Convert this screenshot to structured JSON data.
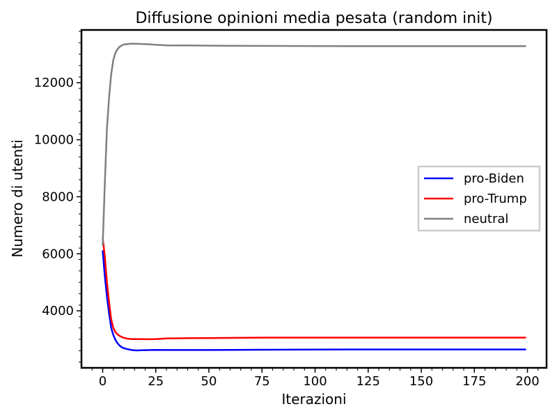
{
  "chart_data": {
    "type": "line",
    "title": "Diffusione opinioni media pesata (random init)",
    "xlabel": "Iterazioni",
    "ylabel": "Numero di utenti",
    "xlim": [
      -10,
      209
    ],
    "ylim": [
      2000,
      13850
    ],
    "xticks": [
      0,
      25,
      50,
      75,
      100,
      125,
      150,
      175,
      200
    ],
    "yticks": [
      4000,
      6000,
      8000,
      10000,
      12000
    ],
    "xtick_labels": [
      "0",
      "25",
      "50",
      "75",
      "100",
      "125",
      "150",
      "175",
      "200"
    ],
    "ytick_labels": [
      "4000",
      "6000",
      "8000",
      "10000",
      "12000"
    ],
    "grid": false,
    "legend_position": "center-right",
    "x": [
      0,
      1,
      2,
      3,
      4,
      5,
      6,
      7,
      8,
      9,
      10,
      12,
      14,
      16,
      18,
      20,
      25,
      30,
      40,
      50,
      60,
      75,
      100,
      125,
      150,
      175,
      199
    ],
    "series": [
      {
        "name": "pro-Biden",
        "color": "#0000ff",
        "values": [
          6100,
          5200,
          4500,
          3900,
          3400,
          3150,
          2980,
          2860,
          2780,
          2720,
          2690,
          2650,
          2620,
          2610,
          2615,
          2620,
          2630,
          2625,
          2625,
          2625,
          2630,
          2635,
          2640,
          2645,
          2645,
          2645,
          2645
        ]
      },
      {
        "name": "pro-Trump",
        "color": "#ff0000",
        "values": [
          6550,
          5900,
          5000,
          4300,
          3700,
          3400,
          3250,
          3170,
          3120,
          3080,
          3050,
          3020,
          3010,
          3010,
          3010,
          3005,
          3010,
          3030,
          3040,
          3045,
          3050,
          3060,
          3060,
          3060,
          3060,
          3060,
          3060
        ]
      },
      {
        "name": "neutral",
        "color": "#808080",
        "values": [
          6300,
          8500,
          10400,
          11500,
          12300,
          12800,
          13050,
          13180,
          13260,
          13310,
          13340,
          13360,
          13370,
          13365,
          13360,
          13355,
          13330,
          13310,
          13305,
          13300,
          13295,
          13290,
          13285,
          13280,
          13280,
          13280,
          13280
        ]
      }
    ]
  }
}
